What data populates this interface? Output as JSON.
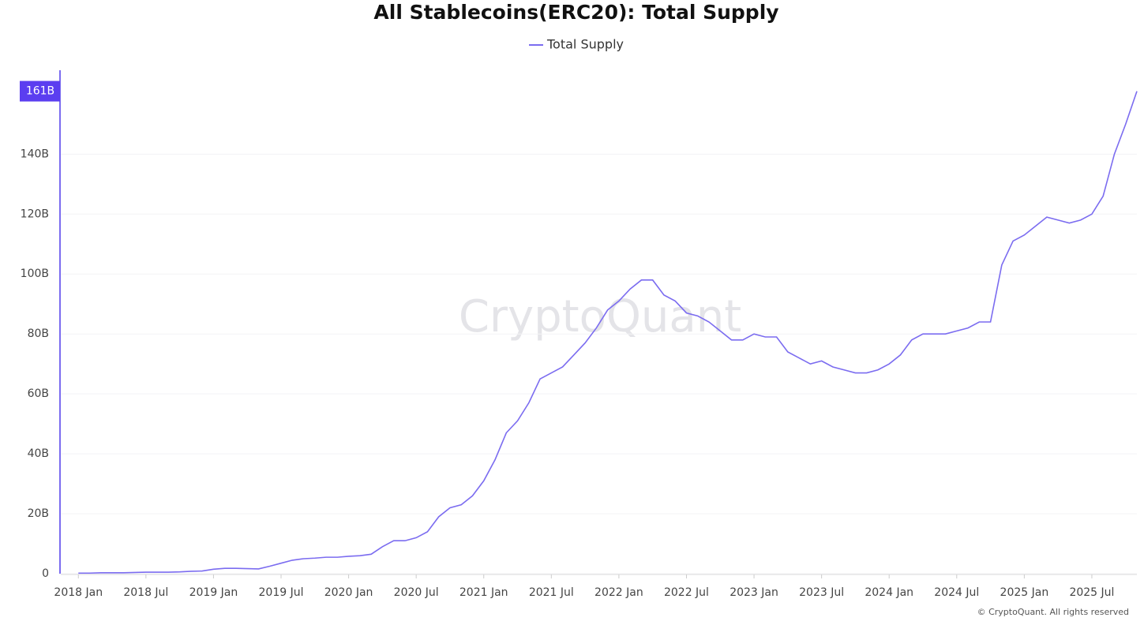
{
  "chart_data": {
    "type": "line",
    "title": "All Stablecoins(ERC20): Total Supply",
    "watermark": "CryptoQuant",
    "footer": "© CryptoQuant. All rights reserved",
    "current_value": {
      "value": 161,
      "label": "161B"
    },
    "x": [
      "2018-01",
      "2018-02",
      "2018-03",
      "2018-04",
      "2018-05",
      "2018-06",
      "2018-07",
      "2018-08",
      "2018-09",
      "2018-10",
      "2018-11",
      "2018-12",
      "2019-01",
      "2019-02",
      "2019-03",
      "2019-04",
      "2019-05",
      "2019-06",
      "2019-07",
      "2019-08",
      "2019-09",
      "2019-10",
      "2019-11",
      "2019-12",
      "2020-01",
      "2020-02",
      "2020-03",
      "2020-04",
      "2020-05",
      "2020-06",
      "2020-07",
      "2020-08",
      "2020-09",
      "2020-10",
      "2020-11",
      "2020-12",
      "2021-01",
      "2021-02",
      "2021-03",
      "2021-04",
      "2021-05",
      "2021-06",
      "2021-07",
      "2021-08",
      "2021-09",
      "2021-10",
      "2021-11",
      "2021-12",
      "2022-01",
      "2022-02",
      "2022-03",
      "2022-04",
      "2022-05",
      "2022-06",
      "2022-07",
      "2022-08",
      "2022-09",
      "2022-10",
      "2022-11",
      "2022-12",
      "2023-01",
      "2023-02",
      "2023-03",
      "2023-04",
      "2023-05",
      "2023-06",
      "2023-07",
      "2023-08",
      "2023-09",
      "2023-10",
      "2023-11",
      "2023-12",
      "2024-01",
      "2024-02",
      "2024-03",
      "2024-04",
      "2024-05",
      "2024-06",
      "2024-07",
      "2024-08",
      "2024-09",
      "2024-10",
      "2024-11",
      "2024-12",
      "2025-01",
      "2025-02",
      "2025-03",
      "2025-04",
      "2025-05",
      "2025-06",
      "2025-07",
      "2025-08",
      "2025-09",
      "2025-10",
      "2025-11"
    ],
    "series": [
      {
        "name": "Total Supply",
        "color": "#7b6cf0",
        "values": [
          0.2,
          0.2,
          0.3,
          0.3,
          0.3,
          0.4,
          0.5,
          0.5,
          0.5,
          0.6,
          0.8,
          0.9,
          1.5,
          1.8,
          1.8,
          1.7,
          1.6,
          2.5,
          3.5,
          4.5,
          5.0,
          5.2,
          5.5,
          5.5,
          5.8,
          6.0,
          6.5,
          9,
          11,
          11,
          12,
          14,
          19,
          22,
          23,
          26,
          31,
          38,
          47,
          51,
          57,
          65,
          67,
          69,
          73,
          77,
          82,
          88,
          91,
          95,
          98,
          98,
          93,
          91,
          87,
          86,
          84,
          81,
          78,
          78,
          80,
          79,
          79,
          74,
          72,
          70,
          71,
          69,
          68,
          67,
          67,
          68,
          70,
          73,
          78,
          80,
          80,
          80,
          81,
          82,
          84,
          84,
          103,
          111,
          113,
          116,
          119,
          118,
          117,
          118,
          120,
          126,
          140,
          150,
          161
        ]
      }
    ],
    "xlim": [
      "2017-12",
      "2025-11"
    ],
    "xticks": [
      {
        "value": "2018-01",
        "label": "2018 Jan"
      },
      {
        "value": "2018-07",
        "label": "2018 Jul"
      },
      {
        "value": "2019-01",
        "label": "2019 Jan"
      },
      {
        "value": "2019-07",
        "label": "2019 Jul"
      },
      {
        "value": "2020-01",
        "label": "2020 Jan"
      },
      {
        "value": "2020-07",
        "label": "2020 Jul"
      },
      {
        "value": "2021-01",
        "label": "2021 Jan"
      },
      {
        "value": "2021-07",
        "label": "2021 Jul"
      },
      {
        "value": "2022-01",
        "label": "2022 Jan"
      },
      {
        "value": "2022-07",
        "label": "2022 Jul"
      },
      {
        "value": "2023-01",
        "label": "2023 Jan"
      },
      {
        "value": "2023-07",
        "label": "2023 Jul"
      },
      {
        "value": "2024-01",
        "label": "2024 Jan"
      },
      {
        "value": "2024-07",
        "label": "2024 Jul"
      },
      {
        "value": "2025-01",
        "label": "2025 Jan"
      },
      {
        "value": "2025-07",
        "label": "2025 Jul"
      }
    ],
    "ylim": [
      0,
      168
    ],
    "yticks": [
      0,
      {
        "value": 20,
        "label": "20B"
      },
      {
        "value": 40,
        "label": "40B"
      },
      {
        "value": 60,
        "label": "60B"
      },
      {
        "value": 80,
        "label": "80B"
      },
      {
        "value": 100,
        "label": "100B"
      },
      {
        "value": 120,
        "label": "120B"
      },
      {
        "value": 140,
        "label": "140B"
      }
    ],
    "grid": true
  }
}
